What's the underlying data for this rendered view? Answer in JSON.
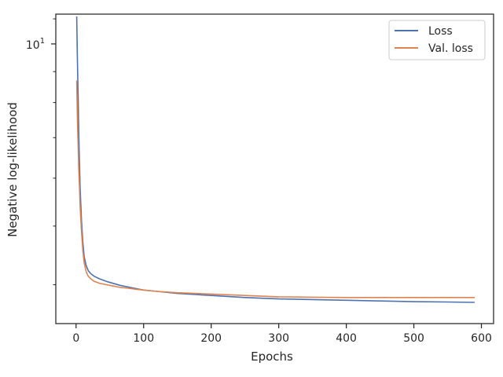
{
  "chart_data": {
    "type": "line",
    "xlabel": "Epochs",
    "ylabel": "Negative log-likelihood",
    "xlim": [
      -30,
      618
    ],
    "ylim": [
      3.45,
      11.2
    ],
    "y_scale": "log",
    "x_ticks": [
      0,
      100,
      200,
      300,
      400,
      500,
      600
    ],
    "x_tick_labels": [
      "0",
      "100",
      "200",
      "300",
      "400",
      "500",
      "600"
    ],
    "y_tick_labels": [
      {
        "base": "10",
        "exp": "1",
        "value": 10
      }
    ],
    "grid": false,
    "legend_position": "top-right",
    "series": [
      {
        "name": "Loss",
        "color": "#4c72b0",
        "x": [
          1,
          2,
          3,
          4,
          5,
          6,
          8,
          10,
          12,
          15,
          18,
          22,
          27,
          35,
          45,
          55,
          65,
          75,
          90,
          100,
          120,
          150,
          200,
          250,
          300,
          350,
          400,
          450,
          500,
          550,
          590
        ],
        "y": [
          11.1,
          9.4,
          8.2,
          7.1,
          6.4,
          5.8,
          5.1,
          4.7,
          4.45,
          4.3,
          4.22,
          4.17,
          4.13,
          4.09,
          4.05,
          4.02,
          3.99,
          3.97,
          3.94,
          3.92,
          3.9,
          3.87,
          3.84,
          3.81,
          3.79,
          3.78,
          3.77,
          3.76,
          3.75,
          3.745,
          3.74
        ]
      },
      {
        "name": "Val. loss",
        "color": "#dd8452",
        "x": [
          1,
          2,
          3,
          4,
          5,
          6,
          8,
          10,
          12,
          15,
          18,
          22,
          27,
          35,
          45,
          55,
          65,
          75,
          90,
          100,
          120,
          150,
          200,
          250,
          300,
          350,
          400,
          450,
          500,
          550,
          590
        ],
        "y": [
          8.7,
          7.5,
          6.8,
          6.2,
          5.8,
          5.4,
          4.9,
          4.55,
          4.35,
          4.2,
          4.13,
          4.09,
          4.05,
          4.02,
          4.0,
          3.98,
          3.96,
          3.95,
          3.93,
          3.92,
          3.9,
          3.88,
          3.86,
          3.84,
          3.82,
          3.815,
          3.81,
          3.81,
          3.81,
          3.81,
          3.81
        ]
      }
    ]
  }
}
